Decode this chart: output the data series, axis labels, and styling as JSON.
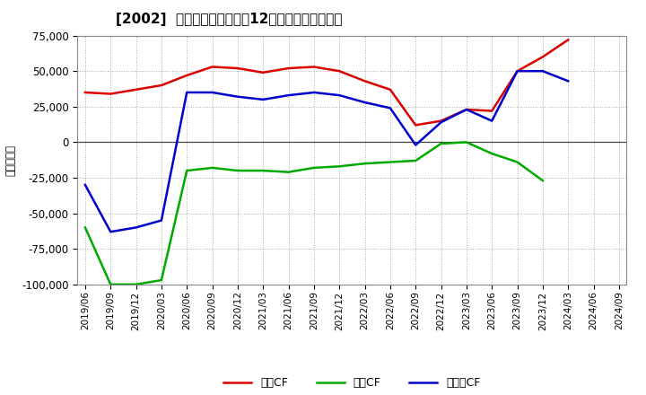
{
  "title": "[2002]  キャッシュフローの12か月移動合計の推移",
  "ylabel": "（百万円）",
  "dates": [
    "2019/06",
    "2019/09",
    "2019/12",
    "2020/03",
    "2020/06",
    "2020/09",
    "2020/12",
    "2021/03",
    "2021/06",
    "2021/09",
    "2021/12",
    "2022/03",
    "2022/06",
    "2022/09",
    "2022/12",
    "2023/03",
    "2023/06",
    "2023/09",
    "2023/12",
    "2024/03",
    "2024/06",
    "2024/09"
  ],
  "eigyo_cf": [
    35000,
    34000,
    37000,
    40000,
    47000,
    53000,
    52000,
    49000,
    52000,
    53000,
    50000,
    43000,
    37000,
    12000,
    15000,
    23000,
    22000,
    50000,
    60000,
    72000,
    null,
    null
  ],
  "toshi_cf": [
    -60000,
    -100000,
    -100000,
    -97000,
    -20000,
    -18000,
    -20000,
    -20000,
    -21000,
    -18000,
    -17000,
    -15000,
    -14000,
    -13000,
    -1000,
    0,
    -8000,
    -14000,
    -27000,
    null,
    null,
    null
  ],
  "free_cf": [
    -30000,
    -63000,
    -60000,
    -55000,
    35000,
    35000,
    32000,
    30000,
    33000,
    35000,
    33000,
    28000,
    24000,
    -2000,
    14000,
    23000,
    15000,
    50000,
    50000,
    43000,
    null,
    null
  ],
  "ylim": [
    -100000,
    75000
  ],
  "yticks": [
    -100000,
    -75000,
    -50000,
    -25000,
    0,
    25000,
    50000,
    75000
  ],
  "colors": {
    "eigyo": "#dd0000",
    "toshi": "#00aa00",
    "free": "#0000cc"
  },
  "legend_labels": [
    "営業CF",
    "投資CF",
    "フリーCF"
  ],
  "background": "#ffffff",
  "grid_color": "#aaaaaa",
  "line_width": 1.8
}
